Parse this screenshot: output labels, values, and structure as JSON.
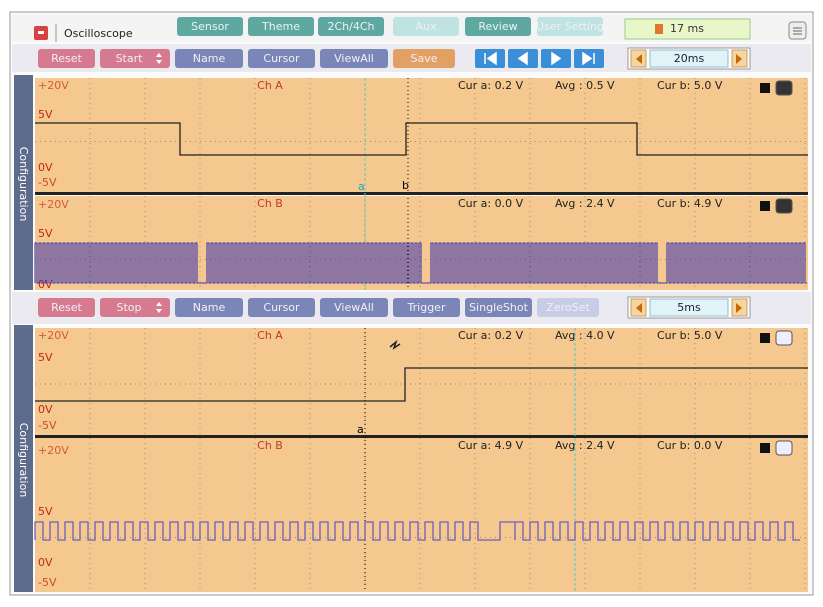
{
  "header": {
    "title": "Oscilloscope",
    "tabs": [
      "Sensor",
      "Theme",
      "2Ch/4Ch",
      "Aux",
      "Review",
      "User Setting"
    ],
    "timer": "17 ms"
  },
  "toolbar_1": {
    "buttons": [
      "Reset",
      "Start",
      "Name",
      "Cursor",
      "ViewAll",
      "Save"
    ],
    "timebase": "20ms"
  },
  "panel_1": {
    "side_label": "Configuration",
    "channels": [
      {
        "name": "Ch A",
        "labels": [
          "+20V",
          "5V",
          "0V",
          "-5V"
        ],
        "cur_a": "Cur a: 0.2 V",
        "avg": "Avg : 0.5 V",
        "cur_b": "Cur b: 5.0 V",
        "cursors": [
          "a",
          "b"
        ]
      },
      {
        "name": "Ch B",
        "labels": [
          "+20V",
          "5V",
          "0V"
        ],
        "cur_a": "Cur a: 0.0 V",
        "avg": "Avg : 2.4 V",
        "cur_b": "Cur b: 4.9 V"
      }
    ]
  },
  "toolbar_2": {
    "buttons": [
      "Reset",
      "Stop",
      "Name",
      "Cursor",
      "ViewAll",
      "Trigger",
      "SingleShot",
      "ZeroSet"
    ],
    "timebase": "5ms"
  },
  "panel_2": {
    "side_label": "Configuration",
    "channels": [
      {
        "name": "Ch A",
        "labels": [
          "+20V",
          "5V",
          "0V",
          "-5V"
        ],
        "cur_a": "Cur a: 0.2 V",
        "avg": "Avg : 4.0 V",
        "cur_b": "Cur b: 5.0 V",
        "cursors": [
          "a"
        ]
      },
      {
        "name": "Ch B",
        "labels": [
          "+20V",
          "5V",
          "0V",
          "-5V"
        ],
        "cur_a": "Cur a: 4.9 V",
        "avg": "Avg : 2.4 V",
        "cur_b": "Cur b: 0.0 V"
      }
    ]
  }
}
